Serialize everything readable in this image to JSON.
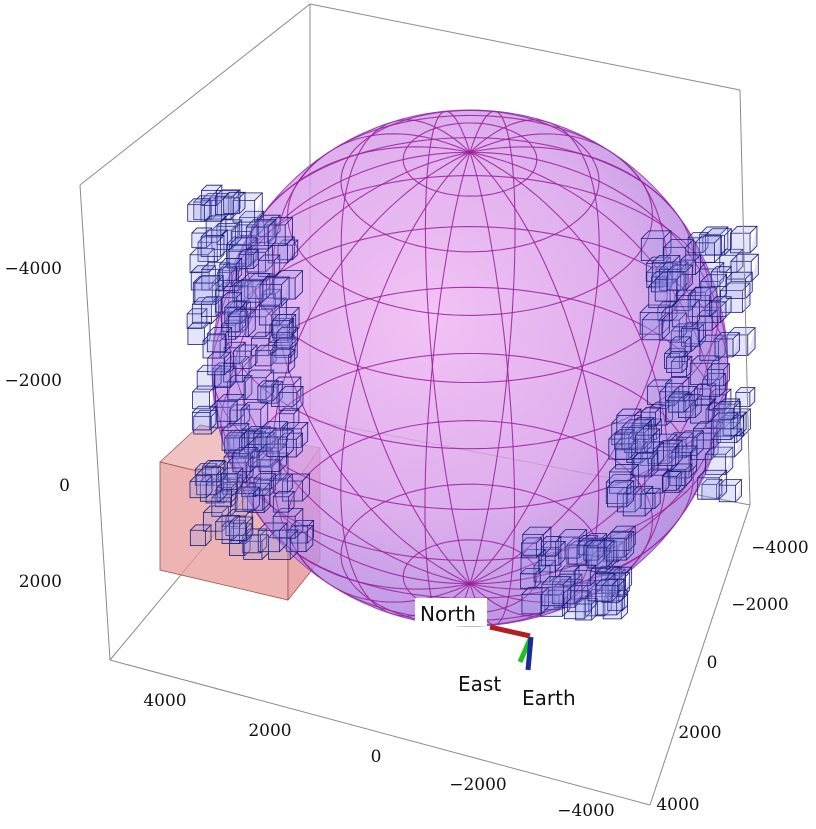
{
  "chart_data": {
    "type": "scatter",
    "projection": "3d",
    "title": "",
    "axes": {
      "x": {
        "ticks": [
          "4000",
          "2000",
          "0",
          "−2000",
          "−4000"
        ]
      },
      "y": {
        "ticks": [
          "−4000",
          "−2000",
          "0",
          "2000",
          "4000"
        ]
      },
      "z": {
        "ticks": [
          "−4000",
          "−2000",
          "0",
          "2000"
        ]
      }
    },
    "sphere": {
      "label": "Earth globe",
      "radius": 4000,
      "color": "#c77ee8",
      "grid": true
    },
    "target_box": {
      "color": "#e89a9a"
    },
    "frame_labels": {
      "north": "North",
      "east": "East",
      "earth": "Earth"
    },
    "frame_colors": {
      "north": "#b02020",
      "east": "#20c020",
      "earth": "#1a2a9a"
    },
    "voxel_clusters": [
      "upper-left",
      "lower-left",
      "upper-right",
      "right",
      "bottom-center"
    ]
  }
}
